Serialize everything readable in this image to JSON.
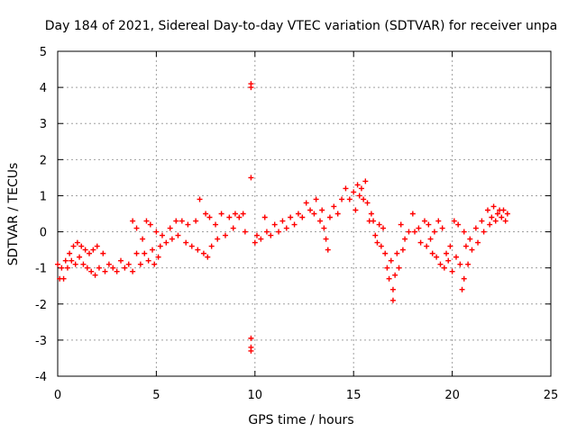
{
  "chart_data": {
    "type": "scatter",
    "title": "Day 184 of 2021, Sidereal Day-to-day VTEC variation (SDTVAR) for receiver unpa",
    "xlabel": "GPS time / hours",
    "ylabel": "SDTVAR / TECUs",
    "xlim": [
      0,
      25
    ],
    "ylim": [
      -4,
      5
    ],
    "x_ticks": [
      "0",
      "5",
      "10",
      "15",
      "20",
      "25"
    ],
    "y_ticks": [
      "-4",
      "-3",
      "-2",
      "-1",
      "0",
      "1",
      "2",
      "3",
      "4",
      "5"
    ],
    "grid": true,
    "marker": "+",
    "series": [
      {
        "name": "SDTVAR",
        "color": "#ff0000",
        "points": [
          [
            0.0,
            -0.9
          ],
          [
            0.1,
            -1.3
          ],
          [
            0.2,
            -1.0
          ],
          [
            0.3,
            -1.3
          ],
          [
            0.4,
            -0.8
          ],
          [
            0.5,
            -1.0
          ],
          [
            0.6,
            -0.6
          ],
          [
            0.7,
            -0.8
          ],
          [
            0.8,
            -0.4
          ],
          [
            0.9,
            -0.9
          ],
          [
            1.0,
            -0.3
          ],
          [
            1.1,
            -0.7
          ],
          [
            1.2,
            -0.4
          ],
          [
            1.3,
            -0.9
          ],
          [
            1.4,
            -0.5
          ],
          [
            1.5,
            -1.0
          ],
          [
            1.6,
            -0.6
          ],
          [
            1.7,
            -1.1
          ],
          [
            1.8,
            -0.5
          ],
          [
            1.9,
            -1.2
          ],
          [
            2.0,
            -0.4
          ],
          [
            2.1,
            -1.0
          ],
          [
            2.3,
            -0.6
          ],
          [
            2.4,
            -1.1
          ],
          [
            2.6,
            -0.9
          ],
          [
            2.8,
            -1.0
          ],
          [
            3.0,
            -1.1
          ],
          [
            3.2,
            -0.8
          ],
          [
            3.4,
            -1.0
          ],
          [
            3.6,
            -0.9
          ],
          [
            3.8,
            -1.1
          ],
          [
            3.8,
            0.3
          ],
          [
            4.0,
            -0.6
          ],
          [
            4.0,
            0.1
          ],
          [
            4.2,
            -0.9
          ],
          [
            4.3,
            -0.2
          ],
          [
            4.4,
            -0.6
          ],
          [
            4.5,
            0.3
          ],
          [
            4.6,
            -0.8
          ],
          [
            4.7,
            0.2
          ],
          [
            4.8,
            -0.5
          ],
          [
            4.9,
            -0.9
          ],
          [
            5.0,
            0.0
          ],
          [
            5.1,
            -0.7
          ],
          [
            5.2,
            -0.4
          ],
          [
            5.3,
            -0.1
          ],
          [
            5.5,
            -0.3
          ],
          [
            5.7,
            0.1
          ],
          [
            5.8,
            -0.2
          ],
          [
            6.0,
            0.3
          ],
          [
            6.1,
            -0.1
          ],
          [
            6.3,
            0.3
          ],
          [
            6.5,
            -0.3
          ],
          [
            6.6,
            0.2
          ],
          [
            6.8,
            -0.4
          ],
          [
            7.0,
            0.3
          ],
          [
            7.1,
            -0.5
          ],
          [
            7.2,
            0.9
          ],
          [
            7.4,
            -0.6
          ],
          [
            7.5,
            0.5
          ],
          [
            7.6,
            -0.7
          ],
          [
            7.7,
            0.4
          ],
          [
            7.8,
            -0.4
          ],
          [
            8.0,
            0.2
          ],
          [
            8.1,
            -0.2
          ],
          [
            8.3,
            0.5
          ],
          [
            8.5,
            -0.1
          ],
          [
            8.7,
            0.4
          ],
          [
            8.9,
            0.1
          ],
          [
            9.0,
            0.5
          ],
          [
            9.2,
            0.4
          ],
          [
            9.4,
            0.5
          ],
          [
            9.5,
            0.0
          ],
          [
            9.8,
            4.1
          ],
          [
            9.8,
            4.0
          ],
          [
            9.8,
            1.5
          ],
          [
            9.8,
            -2.95
          ],
          [
            9.8,
            -3.2
          ],
          [
            9.8,
            -3.3
          ],
          [
            10.0,
            -0.3
          ],
          [
            10.1,
            -0.1
          ],
          [
            10.3,
            -0.2
          ],
          [
            10.5,
            0.4
          ],
          [
            10.6,
            0.0
          ],
          [
            10.8,
            -0.1
          ],
          [
            11.0,
            0.2
          ],
          [
            11.2,
            0.0
          ],
          [
            11.4,
            0.3
          ],
          [
            11.6,
            0.1
          ],
          [
            11.8,
            0.4
          ],
          [
            12.0,
            0.2
          ],
          [
            12.2,
            0.5
          ],
          [
            12.4,
            0.4
          ],
          [
            12.6,
            0.8
          ],
          [
            12.8,
            0.6
          ],
          [
            13.0,
            0.5
          ],
          [
            13.1,
            0.9
          ],
          [
            13.3,
            0.3
          ],
          [
            13.4,
            0.6
          ],
          [
            13.5,
            0.1
          ],
          [
            13.6,
            -0.2
          ],
          [
            13.7,
            -0.5
          ],
          [
            13.8,
            0.4
          ],
          [
            14.0,
            0.7
          ],
          [
            14.2,
            0.5
          ],
          [
            14.4,
            0.9
          ],
          [
            14.6,
            1.2
          ],
          [
            14.8,
            0.9
          ],
          [
            15.0,
            1.1
          ],
          [
            15.1,
            0.6
          ],
          [
            15.2,
            1.3
          ],
          [
            15.3,
            1.0
          ],
          [
            15.4,
            1.2
          ],
          [
            15.5,
            0.9
          ],
          [
            15.6,
            1.4
          ],
          [
            15.7,
            0.8
          ],
          [
            15.8,
            0.3
          ],
          [
            15.9,
            0.5
          ],
          [
            16.0,
            0.3
          ],
          [
            16.1,
            -0.1
          ],
          [
            16.2,
            -0.3
          ],
          [
            16.3,
            0.2
          ],
          [
            16.4,
            -0.4
          ],
          [
            16.5,
            0.1
          ],
          [
            16.6,
            -0.6
          ],
          [
            16.7,
            -1.0
          ],
          [
            16.8,
            -1.3
          ],
          [
            16.9,
            -0.8
          ],
          [
            17.0,
            -1.6
          ],
          [
            17.0,
            -1.9
          ],
          [
            17.1,
            -1.2
          ],
          [
            17.2,
            -0.6
          ],
          [
            17.3,
            -1.0
          ],
          [
            17.4,
            0.2
          ],
          [
            17.5,
            -0.5
          ],
          [
            17.6,
            -0.2
          ],
          [
            17.8,
            0.0
          ],
          [
            18.0,
            0.5
          ],
          [
            18.1,
            0.0
          ],
          [
            18.3,
            0.1
          ],
          [
            18.4,
            -0.3
          ],
          [
            18.6,
            0.3
          ],
          [
            18.7,
            -0.4
          ],
          [
            18.8,
            0.2
          ],
          [
            18.9,
            -0.2
          ],
          [
            19.0,
            -0.6
          ],
          [
            19.1,
            0.0
          ],
          [
            19.2,
            -0.7
          ],
          [
            19.3,
            0.3
          ],
          [
            19.4,
            -0.9
          ],
          [
            19.5,
            0.1
          ],
          [
            19.6,
            -1.0
          ],
          [
            19.7,
            -0.6
          ],
          [
            19.8,
            -0.8
          ],
          [
            19.9,
            -0.4
          ],
          [
            20.0,
            -1.1
          ],
          [
            20.1,
            0.3
          ],
          [
            20.2,
            -0.7
          ],
          [
            20.3,
            0.2
          ],
          [
            20.4,
            -0.9
          ],
          [
            20.5,
            -1.6
          ],
          [
            20.6,
            -1.3
          ],
          [
            20.6,
            0.0
          ],
          [
            20.7,
            -0.4
          ],
          [
            20.8,
            -0.9
          ],
          [
            20.9,
            -0.2
          ],
          [
            21.0,
            -0.5
          ],
          [
            21.2,
            0.1
          ],
          [
            21.3,
            -0.3
          ],
          [
            21.5,
            0.3
          ],
          [
            21.6,
            0.0
          ],
          [
            21.8,
            0.6
          ],
          [
            21.9,
            0.2
          ],
          [
            22.0,
            0.4
          ],
          [
            22.1,
            0.7
          ],
          [
            22.2,
            0.3
          ],
          [
            22.3,
            0.5
          ],
          [
            22.4,
            0.6
          ],
          [
            22.5,
            0.4
          ],
          [
            22.6,
            0.6
          ],
          [
            22.7,
            0.3
          ],
          [
            22.8,
            0.5
          ]
        ]
      }
    ]
  }
}
